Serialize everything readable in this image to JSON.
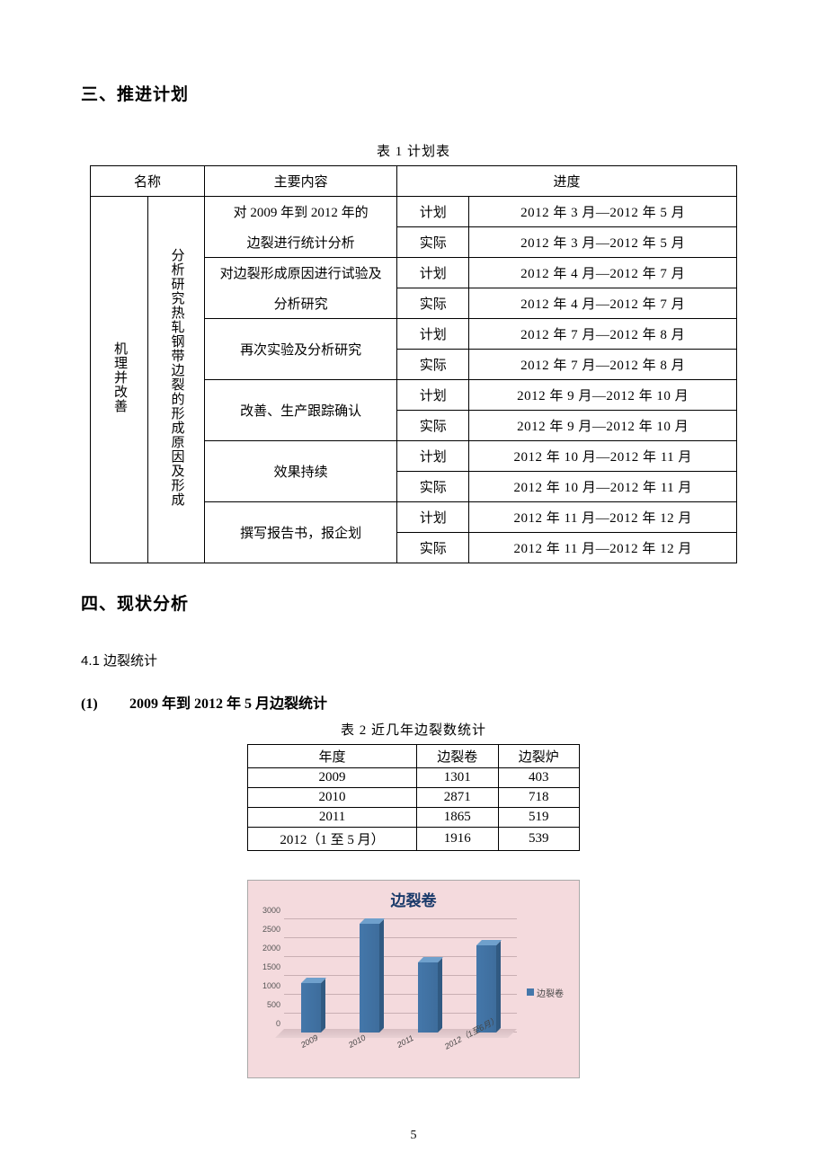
{
  "section3_title": "三、推进计划",
  "table1": {
    "caption": "表 1   计划表",
    "headers": {
      "name": "名称",
      "content": "主要内容",
      "progress": "进度"
    },
    "col1_vertical": "机理并改善",
    "col2_vertical": "分析研究热轧钢带边裂的形成原因及形成",
    "type_plan": "计划",
    "type_actual": "实际",
    "rows": [
      {
        "content_line1": "对 2009 年到 2012 年的",
        "content_line2": "边裂进行统计分析",
        "plan": "2012 年 3 月—2012 年 5 月",
        "actual": "2012 年 3 月—2012 年 5 月"
      },
      {
        "content_line1": "对边裂形成原因进行试验及",
        "content_line2": "分析研究",
        "plan": "2012 年 4 月—2012 年 7 月",
        "actual": "2012 年 4 月—2012 年 7 月"
      },
      {
        "content_single": "再次实验及分析研究",
        "plan": "2012 年 7 月—2012 年 8 月",
        "actual": "2012 年 7 月—2012 年 8 月"
      },
      {
        "content_single": "改善、生产跟踪确认",
        "plan": "2012 年 9 月—2012 年 10 月",
        "actual": "2012 年 9 月—2012 年 10 月"
      },
      {
        "content_single": "效果持续",
        "plan": "2012 年 10 月—2012 年 11 月",
        "actual": "2012 年 10 月—2012 年 11 月"
      },
      {
        "content_single": "撰写报告书，报企划",
        "plan": "2012 年 11 月—2012 年 12 月",
        "actual": "2012 年 11 月—2012 年 12 月"
      }
    ]
  },
  "section4_title": "四、现状分析",
  "sub41": "4.1   边裂统计",
  "sub1": {
    "num": "(1)",
    "text": "2009 年到 2012 年 5 月边裂统计"
  },
  "table2": {
    "caption": "表 2  近几年边裂数统计",
    "columns": [
      "年度",
      "边裂卷",
      "边裂炉"
    ],
    "rows": [
      [
        "2009",
        "1301",
        "403"
      ],
      [
        "2010",
        "2871",
        "718"
      ],
      [
        "2011",
        "1865",
        "519"
      ],
      [
        "2012（1 至 5 月）",
        "1916",
        "539"
      ]
    ]
  },
  "chart": {
    "title": "边裂卷",
    "type": "bar",
    "categories": [
      "2009",
      "2010",
      "2011",
      "2012（1至6月）"
    ],
    "values": [
      1301,
      2871,
      1865,
      2300
    ],
    "ylim": [
      0,
      3000
    ],
    "ytick_step": 500,
    "bar_color": "#4477aa",
    "bar_side_color": "#315a82",
    "bar_top_color": "#6fa0cc",
    "background_color": "#f4dadd",
    "grid_color": "#c9afb3",
    "title_color": "#1a3a6a",
    "legend_label": "边裂卷",
    "title_fontsize": 17,
    "label_fontsize": 9
  },
  "page_number": "5"
}
